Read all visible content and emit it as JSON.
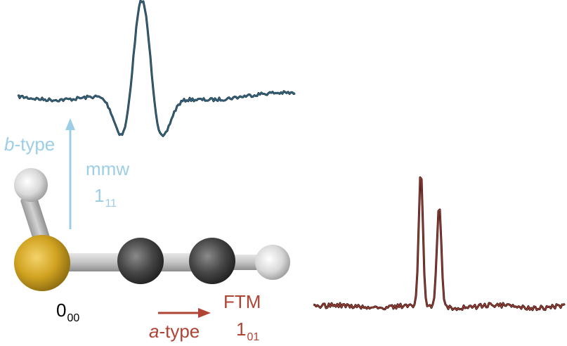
{
  "colors": {
    "b_type": "#9ccfe6",
    "a_type": "#b04434",
    "trace_top": "#17323f",
    "trace_top_highlight": "#3a6a85",
    "trace_bottom": "#3a1410",
    "trace_bottom_highlight": "#a0453c",
    "state_label": "#000000",
    "sulfur": "#d1a321",
    "carbon": "#454545",
    "hydrogen": "#dcdcdc",
    "bond": "#c6c6c6"
  },
  "molecule": {
    "atoms": [
      {
        "element": "H",
        "icon": "hydrogen-atom-icon"
      },
      {
        "element": "S",
        "icon": "sulfur-atom-icon"
      },
      {
        "element": "C",
        "icon": "carbon-atom-icon"
      },
      {
        "element": "C",
        "icon": "carbon-atom-icon"
      },
      {
        "element": "H",
        "icon": "hydrogen-atom-icon"
      }
    ]
  },
  "labels": {
    "ground_state": {
      "main": "0",
      "sub": "00"
    },
    "b_type": {
      "italic": "b",
      "rest": "-type"
    },
    "mmw": "mmw",
    "b_transition": {
      "main": "1",
      "sub": "11"
    },
    "a_type": {
      "italic": "a",
      "rest": "-type"
    },
    "ftm": "FTM",
    "a_transition": {
      "main": "1",
      "sub": "01"
    }
  },
  "icons": {
    "b_arrow": "up-arrow-icon",
    "a_arrow": "right-arrow-icon"
  }
}
